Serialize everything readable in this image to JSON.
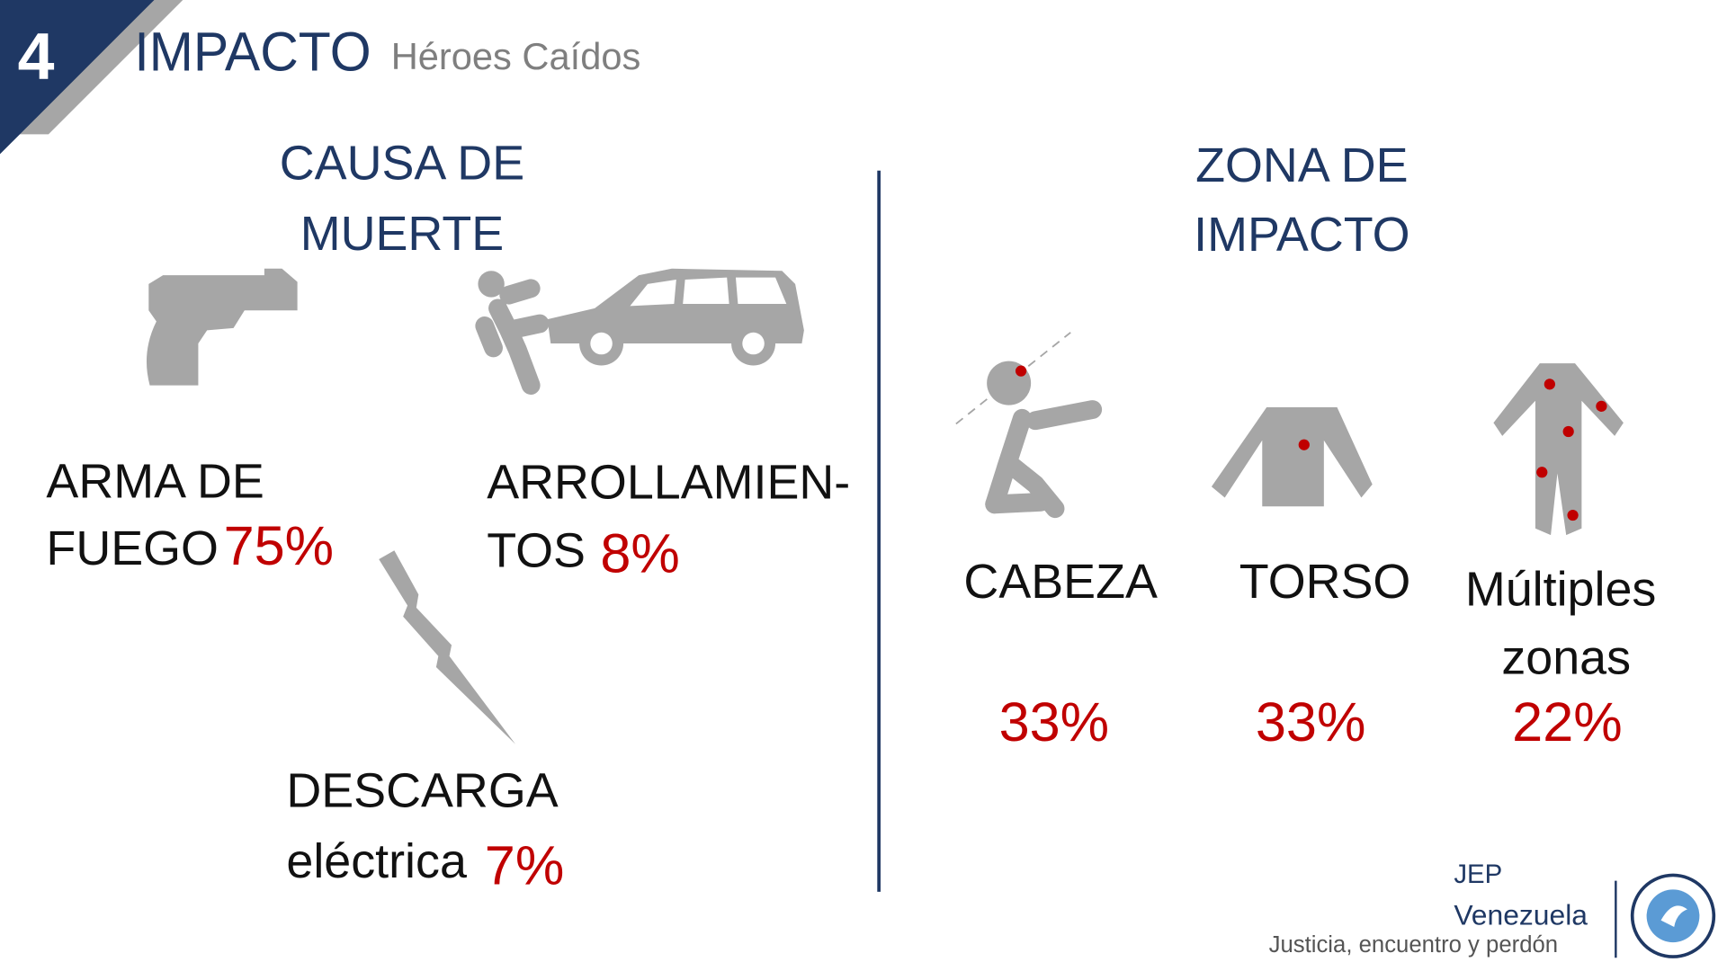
{
  "header": {
    "number": "4",
    "title": "IMPACTO",
    "subtitle": "Héroes Caídos"
  },
  "cause": {
    "title": [
      "CAUSA DE",
      "MUERTE"
    ],
    "items": [
      {
        "label": [
          "ARMA DE",
          "FUEGO"
        ],
        "value": "75%"
      },
      {
        "label": [
          "ARROLLAMIEN-",
          "TOS"
        ],
        "value": "8%"
      },
      {
        "label": [
          "DESCARGA",
          "eléctrica"
        ],
        "value": "7%"
      }
    ]
  },
  "zone": {
    "title": [
      "ZONA DE",
      "IMPACTO"
    ],
    "items": [
      {
        "label": [
          "CABEZA"
        ],
        "value": "33%"
      },
      {
        "label": [
          "TORSO"
        ],
        "value": "33%"
      },
      {
        "label": [
          "Múltiples",
          "zonas"
        ],
        "value": "22%"
      }
    ]
  },
  "footer": {
    "org": "JEP",
    "country": "Venezuela",
    "motto": "Justicia, encuentro y perdón"
  }
}
